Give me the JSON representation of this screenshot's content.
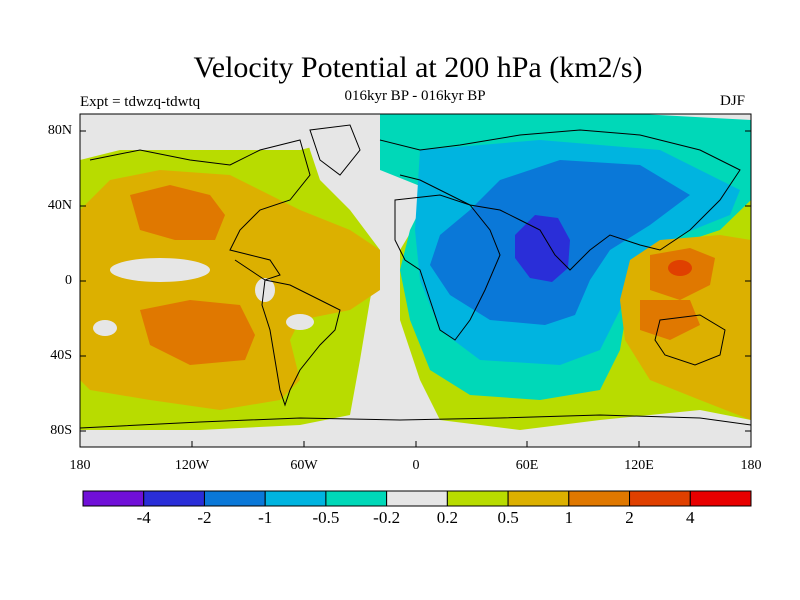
{
  "title": "Velocity Potential at 200 hPa (km2/s)",
  "subtitle": "016kyr BP - 016kyr BP",
  "left_label": "Expt = tdwzq-tdwtq",
  "right_label": "DJF",
  "map": {
    "lat_ticks": [
      "80N",
      "40N",
      "0",
      "40S",
      "80S"
    ],
    "lon_ticks": [
      "180",
      "120W",
      "60W",
      "0",
      "60E",
      "120E",
      "180"
    ]
  },
  "colorbar": {
    "colors": [
      "#7010d8",
      "#2a2ed8",
      "#0a78d8",
      "#00b4e0",
      "#00d8b8",
      "#e6e6e6",
      "#b8dc00",
      "#dcb000",
      "#e07800",
      "#e04000",
      "#e80000"
    ],
    "labels": [
      "-4",
      "-2",
      "-1",
      "-0.5",
      "-0.2",
      "0.2",
      "0.5",
      "1",
      "2",
      "4"
    ]
  }
}
